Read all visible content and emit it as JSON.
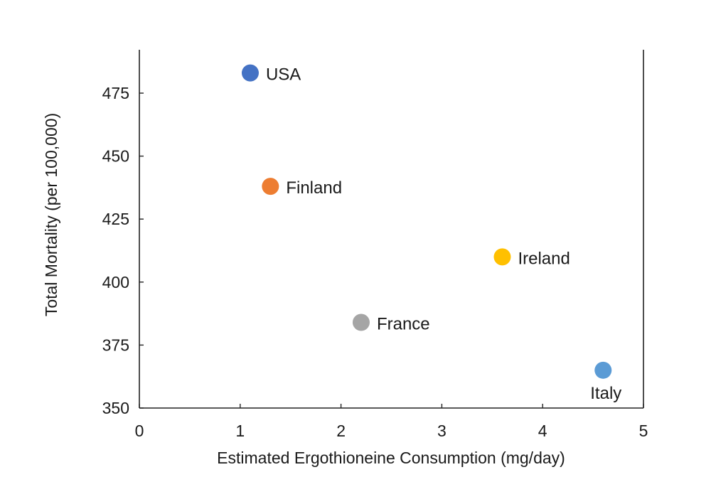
{
  "chart_data": {
    "type": "scatter",
    "title": "",
    "xlabel": "Estimated Ergothioneine Consumption (mg/day)",
    "ylabel": "Total Mortality (per 100,000)",
    "xlim": [
      0,
      5
    ],
    "ylim": [
      350,
      487
    ],
    "xticks": [
      "0",
      "1",
      "2",
      "3",
      "4",
      "5"
    ],
    "yticks": [
      "350",
      "375",
      "400",
      "425",
      "450",
      "475"
    ],
    "grid": false,
    "legend": "none",
    "points": [
      {
        "label": "USA",
        "x": 1.1,
        "y": 483,
        "color": "#4472c4",
        "label_pos": "right"
      },
      {
        "label": "Finland",
        "x": 1.3,
        "y": 438,
        "color": "#ed7d31",
        "label_pos": "right"
      },
      {
        "label": "Ireland",
        "x": 3.6,
        "y": 410,
        "color": "#ffc000",
        "label_pos": "right"
      },
      {
        "label": "France",
        "x": 2.2,
        "y": 384,
        "color": "#a5a5a5",
        "label_pos": "right"
      },
      {
        "label": "Italy",
        "x": 4.6,
        "y": 365,
        "color": "#5b9bd5",
        "label_pos": "below"
      }
    ]
  }
}
